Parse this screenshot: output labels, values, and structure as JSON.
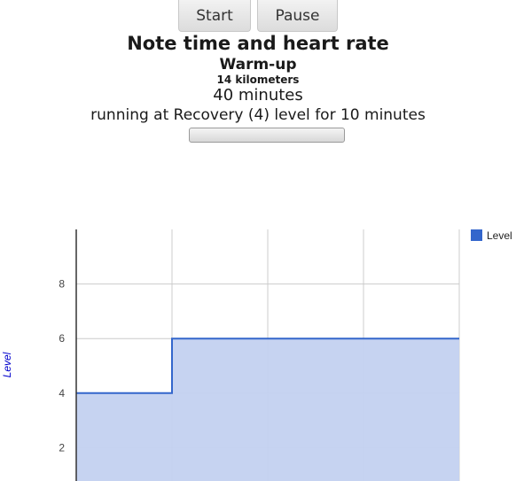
{
  "controls": {
    "start_label": "Start",
    "pause_label": "Pause"
  },
  "workout": {
    "title": "Note time and heart rate",
    "phase": "Warm-up",
    "distance": "14 kilometers",
    "duration": "40 minutes",
    "instruction": "running at Recovery (4) level for 10 minutes",
    "progress": 0
  },
  "colors": {
    "series_line": "#3366cc",
    "series_fill": "#c3d1f0",
    "axis_label": "#0000cc",
    "grid": "#cccccc"
  },
  "chart_data": {
    "type": "area",
    "step": true,
    "x": [
      0,
      10,
      20,
      30,
      40
    ],
    "series": [
      {
        "name": "Level",
        "values": [
          4,
          6,
          6,
          6,
          6
        ]
      }
    ],
    "title": "",
    "xlabel": "",
    "ylabel": "Level",
    "yticks": [
      2,
      4,
      6,
      8
    ],
    "ylim": [
      0,
      10
    ],
    "xlim": [
      0,
      40
    ],
    "grid": true,
    "legend": "top-right"
  }
}
